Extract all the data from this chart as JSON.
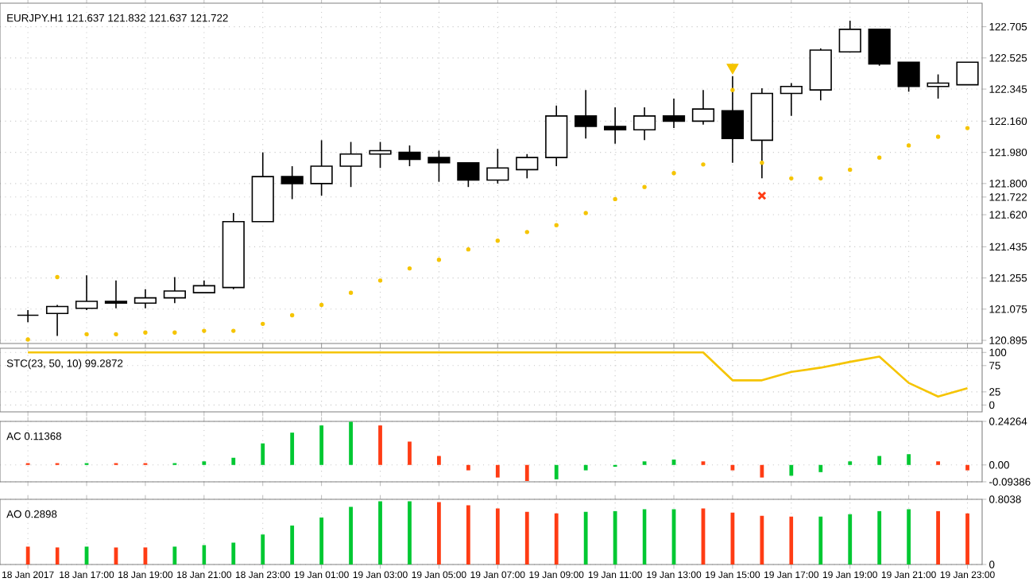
{
  "chart_data": [
    {
      "type": "candlestick",
      "title": "EURJPY.H1 121.637 121.832 121.637 121.722",
      "tick_labels": "y",
      "grid": true,
      "categories": [
        null,
        null,
        null,
        null,
        null,
        null,
        null,
        null,
        null,
        null,
        null,
        null,
        null,
        null,
        null,
        null,
        null,
        null,
        null,
        null,
        null,
        null,
        null,
        null,
        null,
        null,
        null,
        null,
        null,
        null,
        null,
        null,
        null
      ],
      "ylim": [
        120.877,
        122.841
      ],
      "yticks": [
        120.895,
        121.075,
        121.255,
        121.435,
        {
          "value": 121.62,
          "label": "121.620"
        },
        121.722,
        {
          "value": 121.8,
          "label": "121.800"
        },
        {
          "value": 121.98,
          "label": "121.980"
        },
        {
          "value": 122.16,
          "label": "122.160"
        },
        122.345,
        122.525,
        122.705
      ],
      "series": [
        {
          "type": "candlestick",
          "color": "#000000",
          "ohlc": [
            [
              121.04,
              121.07,
              121.0,
              121.04
            ],
            [
              121.05,
              121.1,
              120.92,
              121.09
            ],
            [
              121.08,
              121.27,
              121.07,
              121.12
            ],
            [
              121.12,
              121.24,
              121.08,
              121.11
            ],
            [
              121.11,
              121.19,
              121.08,
              121.14
            ],
            [
              121.14,
              121.26,
              121.11,
              121.18
            ],
            [
              121.17,
              121.24,
              121.17,
              121.21
            ],
            [
              121.2,
              121.63,
              121.19,
              121.58
            ],
            [
              121.58,
              121.98,
              121.58,
              121.84
            ],
            [
              121.84,
              121.9,
              121.71,
              121.8
            ],
            [
              121.8,
              122.05,
              121.73,
              121.9
            ],
            [
              121.9,
              122.04,
              121.78,
              121.97
            ],
            [
              121.97,
              122.04,
              121.89,
              121.99
            ],
            [
              121.98,
              122.02,
              121.9,
              121.94
            ],
            [
              121.95,
              121.99,
              121.81,
              121.92
            ],
            [
              121.92,
              121.92,
              121.78,
              121.82
            ],
            [
              121.82,
              122.0,
              121.8,
              121.89
            ],
            [
              121.88,
              121.97,
              121.83,
              121.95
            ],
            [
              121.95,
              122.25,
              121.9,
              122.19
            ],
            [
              122.19,
              122.34,
              122.06,
              122.13
            ],
            [
              122.13,
              122.24,
              122.03,
              122.11
            ],
            [
              122.11,
              122.24,
              122.05,
              122.19
            ],
            [
              122.19,
              122.29,
              122.12,
              122.16
            ],
            [
              122.16,
              122.34,
              122.14,
              122.23
            ],
            [
              122.22,
              122.42,
              121.92,
              122.06
            ],
            [
              122.05,
              122.35,
              121.83,
              122.32
            ],
            [
              122.32,
              122.38,
              122.19,
              122.36
            ],
            [
              122.34,
              122.58,
              122.28,
              122.57
            ],
            [
              122.56,
              122.74,
              122.56,
              122.69
            ],
            [
              122.69,
              122.69,
              122.48,
              122.49
            ],
            [
              122.5,
              122.5,
              122.33,
              122.36
            ],
            [
              122.36,
              122.43,
              122.29,
              122.38
            ],
            [
              122.37,
              122.5,
              122.37,
              122.5
            ]
          ]
        },
        {
          "type": "scatter",
          "color": "#f5c400",
          "marker": "circle",
          "values": [
            120.9,
            121.26,
            120.93,
            120.93,
            120.94,
            120.94,
            120.95,
            120.95,
            120.99,
            121.04,
            121.1,
            121.17,
            121.24,
            121.31,
            121.36,
            121.42,
            121.47,
            121.52,
            121.56,
            121.63,
            121.71,
            121.78,
            121.86,
            121.91,
            122.34,
            121.92,
            121.83,
            121.83,
            121.88,
            121.95,
            122.02,
            122.07,
            122.12
          ]
        },
        {
          "type": "scatter",
          "color": "#f5c400",
          "marker": "triangle",
          "values": [
            null,
            null,
            null,
            null,
            null,
            null,
            null,
            null,
            null,
            null,
            null,
            null,
            null,
            null,
            null,
            null,
            null,
            null,
            null,
            null,
            null,
            null,
            null,
            null,
            122.47,
            null,
            null,
            null,
            null,
            null,
            null,
            null,
            null
          ]
        },
        {
          "type": "scatter",
          "color": "#ff3c14",
          "marker": "cross",
          "values": [
            null,
            null,
            null,
            null,
            null,
            null,
            null,
            null,
            null,
            null,
            null,
            null,
            null,
            null,
            null,
            null,
            null,
            null,
            null,
            null,
            null,
            null,
            null,
            null,
            null,
            121.73,
            null,
            null,
            null,
            null,
            null,
            null,
            null
          ]
        }
      ]
    },
    {
      "type": "line",
      "title": "STC(23, 50, 10) 99.2872",
      "tick_labels": "y",
      "grid": true,
      "color": "#f5c400",
      "categories": [
        null,
        null,
        null,
        null,
        null,
        null,
        null,
        null,
        null,
        null,
        null,
        null,
        null,
        null,
        null,
        null,
        null,
        null,
        null,
        null,
        null,
        null,
        null,
        null,
        null,
        null,
        null,
        null,
        null,
        null,
        null,
        null,
        null
      ],
      "ylim": [
        -13,
        108
      ],
      "yticks": [
        0,
        25,
        75,
        100
      ],
      "values": [
        100,
        100,
        100,
        100,
        100,
        100,
        100,
        100,
        100,
        100,
        100,
        100,
        100,
        100,
        100,
        100,
        100,
        100,
        100,
        100,
        100,
        100,
        100,
        100,
        47,
        47,
        63,
        71,
        82,
        92,
        42,
        16,
        32
      ]
    },
    {
      "type": "bar",
      "title": "AC 0.11368",
      "tick_labels": "y",
      "grid": true,
      "categories": [
        null,
        null,
        null,
        null,
        null,
        null,
        null,
        null,
        null,
        null,
        null,
        null,
        null,
        null,
        null,
        null,
        null,
        null,
        null,
        null,
        null,
        null,
        null,
        null,
        null,
        null,
        null,
        null,
        null,
        null,
        null,
        null,
        null
      ],
      "ylim": [
        -0.09386,
        0.24264
      ],
      "yticks": [
        -0.09386,
        {
          "value": 0,
          "label": "0.00"
        },
        0.24264
      ],
      "values": [
        0.01,
        0.01,
        0.01,
        0.01,
        0.01,
        0.01,
        0.02,
        0.04,
        0.12,
        0.18,
        0.22,
        0.24,
        0.22,
        0.13,
        0.05,
        -0.03,
        -0.07,
        -0.09,
        -0.08,
        -0.03,
        -0.01,
        0.02,
        0.03,
        0.02,
        -0.03,
        -0.07,
        -0.06,
        -0.04,
        0.02,
        0.05,
        0.06,
        0.02,
        -0.03
      ],
      "colors": [
        "#ff3c14",
        "#ff3c14",
        "#00c832",
        "#ff3c14",
        "#ff3c14",
        "#00c832",
        "#00c832",
        "#00c832",
        "#00c832",
        "#00c832",
        "#00c832",
        "#00c832",
        "#ff3c14",
        "#ff3c14",
        "#ff3c14",
        "#ff3c14",
        "#ff3c14",
        "#ff3c14",
        "#00c832",
        "#00c832",
        "#00c832",
        "#00c832",
        "#00c832",
        "#ff3c14",
        "#ff3c14",
        "#ff3c14",
        "#00c832",
        "#00c832",
        "#00c832",
        "#00c832",
        "#00c832",
        "#ff3c14",
        "#ff3c14"
      ]
    },
    {
      "type": "bar",
      "title": "AO 0.2898",
      "grid": true,
      "categories": [
        "18 Jan 2017",
        null,
        "18 Jan 17:00",
        null,
        "18 Jan 19:00",
        null,
        "18 Jan 21:00",
        null,
        "18 Jan 23:00",
        null,
        "19 Jan 01:00",
        null,
        "19 Jan 03:00",
        null,
        "19 Jan 05:00",
        null,
        "19 Jan 07:00",
        null,
        "19 Jan 09:00",
        null,
        "19 Jan 11:00",
        null,
        "19 Jan 13:00",
        null,
        "19 Jan 15:00",
        null,
        "19 Jan 17:00",
        null,
        "19 Jan 19:00",
        null,
        "19 Jan 21:00",
        null,
        "19 Jan 23:00"
      ],
      "ylim": [
        0,
        0.8038
      ],
      "yticks": [
        0,
        0.8038
      ],
      "values": [
        0.22,
        0.21,
        0.22,
        0.21,
        0.21,
        0.22,
        0.24,
        0.27,
        0.37,
        0.48,
        0.58,
        0.71,
        0.78,
        0.78,
        0.77,
        0.73,
        0.69,
        0.65,
        0.63,
        0.65,
        0.66,
        0.68,
        0.68,
        0.69,
        0.64,
        0.6,
        0.59,
        0.59,
        0.62,
        0.66,
        0.68,
        0.66,
        0.63
      ],
      "colors": [
        "#ff3c14",
        "#ff3c14",
        "#00c832",
        "#ff3c14",
        "#ff3c14",
        "#00c832",
        "#00c832",
        "#00c832",
        "#00c832",
        "#00c832",
        "#00c832",
        "#00c832",
        "#00c832",
        "#00c832",
        "#ff3c14",
        "#ff3c14",
        "#ff3c14",
        "#ff3c14",
        "#ff3c14",
        "#00c832",
        "#00c832",
        "#00c832",
        "#00c832",
        "#ff3c14",
        "#ff3c14",
        "#ff3c14",
        "#ff3c14",
        "#00c832",
        "#00c832",
        "#00c832",
        "#00c832",
        "#ff3c14",
        "#ff3c14"
      ]
    }
  ]
}
